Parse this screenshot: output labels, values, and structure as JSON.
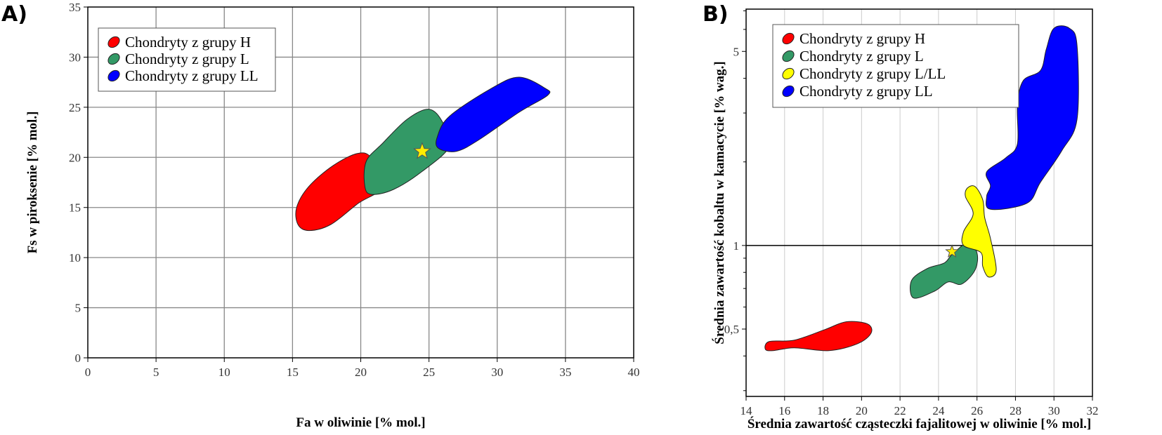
{
  "chart_data": [
    {
      "panel_label": "A)",
      "type": "area",
      "xlabel": "Fa w oliwinie [% mol.]",
      "ylabel": "Fs w piroksenie [% mol.]",
      "xlim": [
        0,
        40
      ],
      "ylim": [
        0,
        35
      ],
      "xticks": [
        0,
        5,
        10,
        15,
        20,
        25,
        30,
        35,
        40
      ],
      "yticks": [
        0,
        5,
        10,
        15,
        20,
        25,
        30,
        35
      ],
      "yscale": "linear",
      "grid": true,
      "legend_position": "top-left",
      "regions": [
        {
          "name": "Chondryty z grupy H",
          "color": "#ff0000",
          "points": [
            [
              15.4,
              13.3
            ],
            [
              15.3,
              15.0
            ],
            [
              16.2,
              17.1
            ],
            [
              18.0,
              19.2
            ],
            [
              19.8,
              20.4
            ],
            [
              20.8,
              19.9
            ],
            [
              21.6,
              17.1
            ],
            [
              19.8,
              15.4
            ],
            [
              17.8,
              13.3
            ],
            [
              16.2,
              12.7
            ]
          ]
        },
        {
          "name": "Chondryty z grupy L",
          "color": "#339966",
          "points": [
            [
              20.3,
              17.1
            ],
            [
              20.4,
              19.6
            ],
            [
              21.6,
              21.4
            ],
            [
              23.4,
              23.8
            ],
            [
              25.0,
              24.8
            ],
            [
              26.0,
              23.5
            ],
            [
              26.5,
              21.1
            ],
            [
              24.5,
              18.6
            ],
            [
              22.4,
              16.8
            ],
            [
              20.8,
              16.3
            ]
          ]
        },
        {
          "name": "Chondryty z grupy LL",
          "color": "#0000ff",
          "points": [
            [
              25.6,
              22.0
            ],
            [
              26.5,
              24.1
            ],
            [
              29.6,
              26.9
            ],
            [
              31.6,
              28.0
            ],
            [
              33.5,
              26.9
            ],
            [
              33.7,
              26.2
            ],
            [
              31.6,
              24.5
            ],
            [
              28.6,
              21.7
            ],
            [
              27.0,
              20.6
            ],
            [
              25.7,
              20.9
            ]
          ]
        }
      ],
      "star": {
        "x": 24.5,
        "y": 20.6,
        "color": "#ffee00"
      }
    },
    {
      "panel_label": "B)",
      "type": "area",
      "xlabel": "Średnia zawartość cząsteczki fajalitowej w oliwinie [% mol.]",
      "ylabel": "Średnia zawartość kobaltu w kamacycie [% wag.]",
      "xlim": [
        14,
        32
      ],
      "ylim": [
        0.286,
        7.1
      ],
      "xticks": [
        14,
        16,
        18,
        20,
        22,
        24,
        26,
        28,
        30,
        32
      ],
      "yticks": [
        {
          "v": 0.5,
          "label": "0,5"
        },
        {
          "v": 1,
          "label": "1"
        },
        {
          "v": 5,
          "label": "5"
        }
      ],
      "yminor": [
        0.3,
        0.4,
        0.6,
        0.7,
        0.8,
        0.9,
        2,
        3,
        4,
        6,
        7
      ],
      "yscale": "log",
      "reference_line": 1,
      "legend_position": "top-left",
      "regions": [
        {
          "name": "Chondryty z grupy H",
          "color": "#ff0000",
          "points": [
            [
              15.0,
              0.423
            ],
            [
              15.2,
              0.451
            ],
            [
              16.5,
              0.456
            ],
            [
              18.1,
              0.498
            ],
            [
              19.2,
              0.531
            ],
            [
              20.3,
              0.522
            ],
            [
              20.5,
              0.484
            ],
            [
              19.8,
              0.443
            ],
            [
              18.3,
              0.418
            ],
            [
              16.5,
              0.428
            ],
            [
              15.4,
              0.418
            ]
          ]
        },
        {
          "name": "Chondryty z grupy L",
          "color": "#339966",
          "points": [
            [
              22.7,
              0.647
            ],
            [
              22.6,
              0.748
            ],
            [
              23.4,
              0.825
            ],
            [
              24.3,
              0.865
            ],
            [
              24.7,
              0.927
            ],
            [
              25.5,
              1.02
            ],
            [
              26.0,
              0.94
            ],
            [
              25.9,
              0.816
            ],
            [
              25.2,
              0.726
            ],
            [
              24.5,
              0.739
            ],
            [
              23.8,
              0.685
            ]
          ]
        },
        {
          "name": "Chondryty z grupy L/LL",
          "color": "#ffff00",
          "points": [
            [
              25.5,
              1.61
            ],
            [
              25.9,
              1.63
            ],
            [
              26.3,
              1.46
            ],
            [
              26.4,
              1.26
            ],
            [
              26.7,
              1.06
            ],
            [
              27.0,
              0.816
            ],
            [
              26.6,
              0.77
            ],
            [
              26.3,
              0.84
            ],
            [
              26.2,
              0.943
            ],
            [
              25.3,
              1.0
            ],
            [
              25.3,
              1.12
            ],
            [
              25.8,
              1.3
            ],
            [
              25.4,
              1.5
            ]
          ]
        },
        {
          "name": "Chondryty z grupy LL",
          "color": "#0000ff",
          "points": [
            [
              26.5,
              1.84
            ],
            [
              27.5,
              2.07
            ],
            [
              28.1,
              2.32
            ],
            [
              28.1,
              3.2
            ],
            [
              28.4,
              3.92
            ],
            [
              29.3,
              4.27
            ],
            [
              29.6,
              5.09
            ],
            [
              30.0,
              6.06
            ],
            [
              30.8,
              6.06
            ],
            [
              31.2,
              5.25
            ],
            [
              31.2,
              2.85
            ],
            [
              30.4,
              2.19
            ],
            [
              29.3,
              1.69
            ],
            [
              28.6,
              1.42
            ],
            [
              26.7,
              1.35
            ],
            [
              26.5,
              1.5
            ],
            [
              26.7,
              1.64
            ]
          ]
        }
      ],
      "star": {
        "x": 24.7,
        "y": 0.95,
        "color": "#ffee00"
      }
    }
  ]
}
